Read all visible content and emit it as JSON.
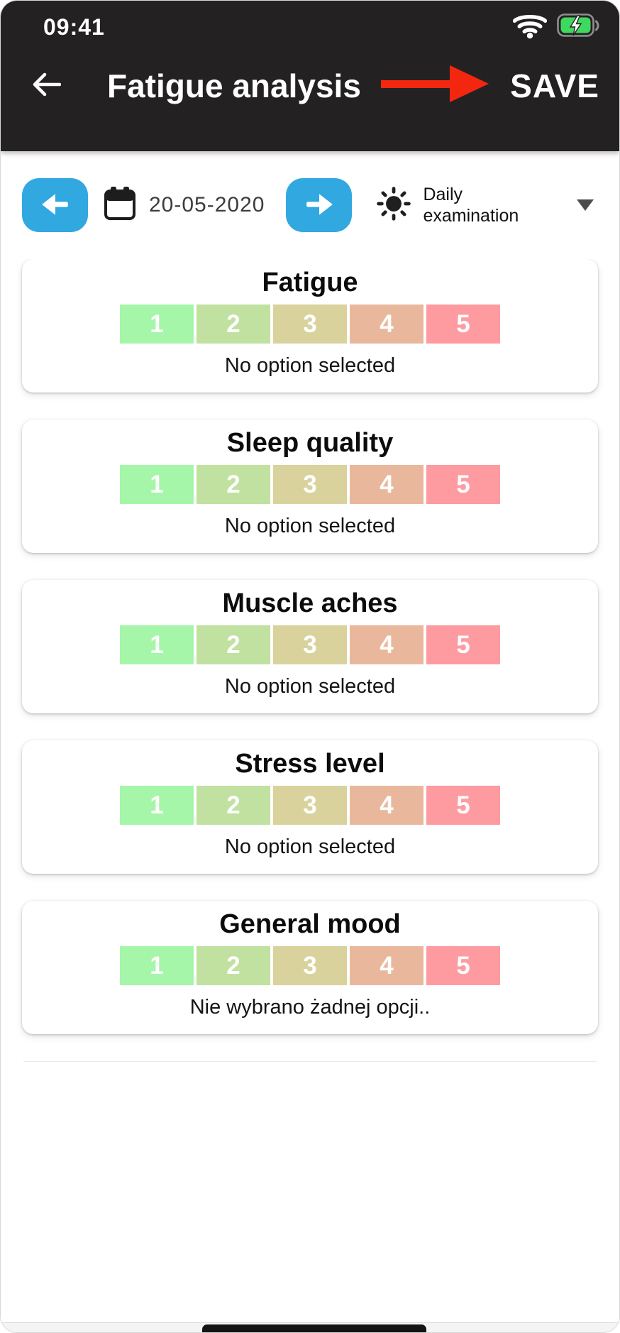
{
  "status_bar": {
    "time": "09:41"
  },
  "header": {
    "title": "Fatigue analysis",
    "save_label": "SAVE"
  },
  "toolbar": {
    "date": "20-05-2020",
    "exam_type": "Daily examination"
  },
  "cards": [
    {
      "title": "Fatigue",
      "options": [
        "1",
        "2",
        "3",
        "4",
        "5"
      ],
      "status": "No option selected"
    },
    {
      "title": "Sleep quality",
      "options": [
        "1",
        "2",
        "3",
        "4",
        "5"
      ],
      "status": "No option selected"
    },
    {
      "title": "Muscle aches",
      "options": [
        "1",
        "2",
        "3",
        "4",
        "5"
      ],
      "status": "No option selected"
    },
    {
      "title": "Stress level",
      "options": [
        "1",
        "2",
        "3",
        "4",
        "5"
      ],
      "status": "No option selected"
    },
    {
      "title": "General mood",
      "options": [
        "1",
        "2",
        "3",
        "4",
        "5"
      ],
      "status": "Nie wybrano żadnej opcji.."
    }
  ],
  "colors": {
    "header_bg": "#242122",
    "accent_blue": "#31a8e0",
    "annotation_red": "#f3270f",
    "battery_green": "#40d95f",
    "scale": [
      "#a5f6a8",
      "#c1e1a0",
      "#d9d29c",
      "#e9b89c",
      "#fd9ba1"
    ]
  }
}
